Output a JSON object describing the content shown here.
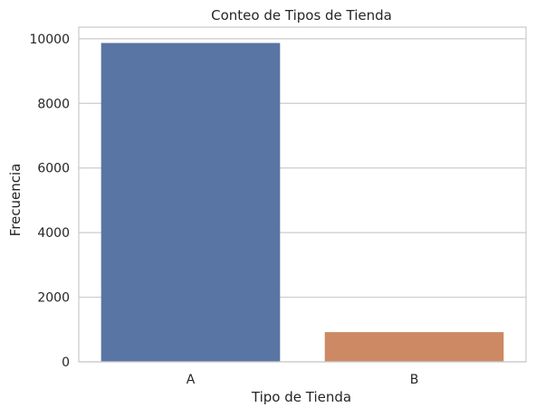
{
  "chart_data": {
    "type": "bar",
    "title": "Conteo de Tipos de Tienda",
    "xlabel": "Tipo de Tienda",
    "ylabel": "Frecuencia",
    "categories": [
      "A",
      "B"
    ],
    "values": [
      9870,
      920
    ],
    "ylim": [
      0,
      10360
    ],
    "yticks": [
      0,
      2000,
      4000,
      6000,
      8000,
      10000
    ],
    "ytick_labels": [
      "0",
      "2000",
      "4000",
      "6000",
      "8000",
      "10000"
    ],
    "grid": true,
    "colors": {
      "bars": [
        "#5975a4",
        "#cc8963"
      ],
      "grid": "#cccccc",
      "frame": "#cccccc",
      "text": "#262626"
    }
  }
}
